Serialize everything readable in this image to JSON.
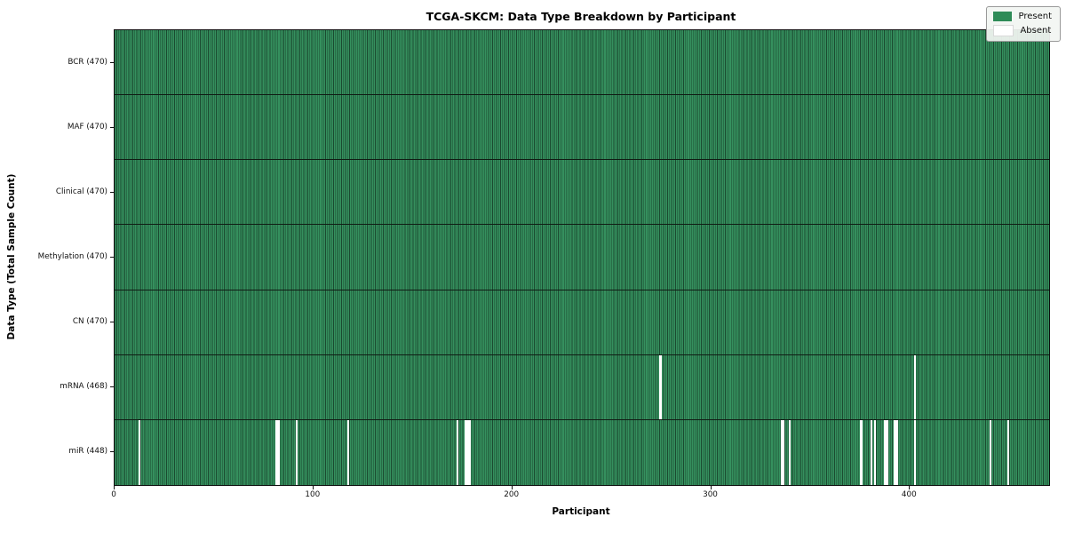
{
  "figure": {
    "title": "TCGA-SKCM: Data Type Breakdown by Participant",
    "xlabel": "Participant",
    "ylabel": "Data Type (Total Sample Count)"
  },
  "legend": {
    "present_label": "Present",
    "absent_label": "Absent"
  },
  "colors": {
    "present_fill": "#35905e",
    "bar_edge": "#1b4a30",
    "legend_present_swatch": "#2e8b57",
    "legend_absent_swatch": "#ffffff",
    "absent": "#ffffff",
    "row_divider": "#101c14"
  },
  "chart_data": {
    "type": "heatmap",
    "title": "TCGA-SKCM: Data Type Breakdown by Participant",
    "xlabel": "Participant",
    "ylabel": "Data Type (Total Sample Count)",
    "legend_entries": [
      "Present",
      "Absent"
    ],
    "legend_position": "upper right",
    "n_participants": 470,
    "x_ticks": [
      0,
      100,
      200,
      300,
      400
    ],
    "xlim": [
      0,
      470
    ],
    "grid": false,
    "rows": [
      {
        "label": "BCR (470)",
        "data_type": "BCR",
        "present_count": 470,
        "absent_participants": []
      },
      {
        "label": "MAF (470)",
        "data_type": "MAF",
        "present_count": 470,
        "absent_participants": []
      },
      {
        "label": "Clinical (470)",
        "data_type": "Clinical",
        "present_count": 470,
        "absent_participants": []
      },
      {
        "label": "Methylation (470)",
        "data_type": "Methylation",
        "present_count": 470,
        "absent_participants": []
      },
      {
        "label": "CN (470)",
        "data_type": "CN",
        "present_count": 470,
        "absent_participants": []
      },
      {
        "label": "mRNA (468)",
        "data_type": "mRNA",
        "present_count": 468,
        "absent_participants": [
          274,
          402
        ]
      },
      {
        "label": "miR (448)",
        "data_type": "miR",
        "present_count": 448,
        "absent_participants": [
          12,
          81,
          82,
          91,
          117,
          172,
          176,
          177,
          178,
          335,
          336,
          339,
          375,
          380,
          382,
          387,
          388,
          392,
          393,
          402,
          440,
          449
        ]
      }
    ]
  }
}
